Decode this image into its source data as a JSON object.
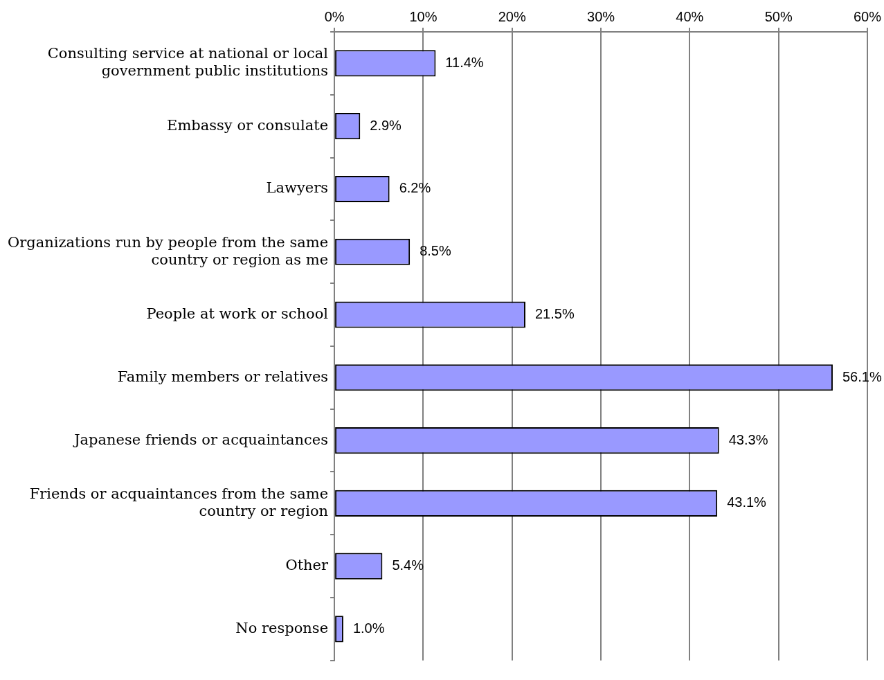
{
  "chart_data": {
    "type": "bar",
    "orientation": "horizontal",
    "categories": [
      "Consulting service at national or local government public institutions",
      "Embassy or consulate",
      "Lawyers",
      "Organizations run by people from the same country or region as me",
      "People at work or school",
      "Family members or relatives",
      "Japanese friends or acquaintances",
      "Friends or acquaintances from the same country or region",
      "Other",
      "No response"
    ],
    "values": [
      11.4,
      2.9,
      6.2,
      8.5,
      21.5,
      56.1,
      43.3,
      43.1,
      5.4,
      1.0
    ],
    "value_labels": [
      "11.4%",
      "2.9%",
      "6.2%",
      "8.5%",
      "21.5%",
      "56.1%",
      "43.3%",
      "43.1%",
      "5.4%",
      "1.0%"
    ],
    "color": "#9999ff",
    "xlim": [
      0,
      60
    ],
    "xticks": [
      {
        "value": 0,
        "label": "0%"
      },
      {
        "value": 10,
        "label": "10%"
      },
      {
        "value": 20,
        "label": "20%"
      },
      {
        "value": 30,
        "label": "30%"
      },
      {
        "value": 40,
        "label": "40%"
      },
      {
        "value": 50,
        "label": "50%"
      },
      {
        "value": 60,
        "label": "60%"
      }
    ],
    "grid": "x"
  }
}
